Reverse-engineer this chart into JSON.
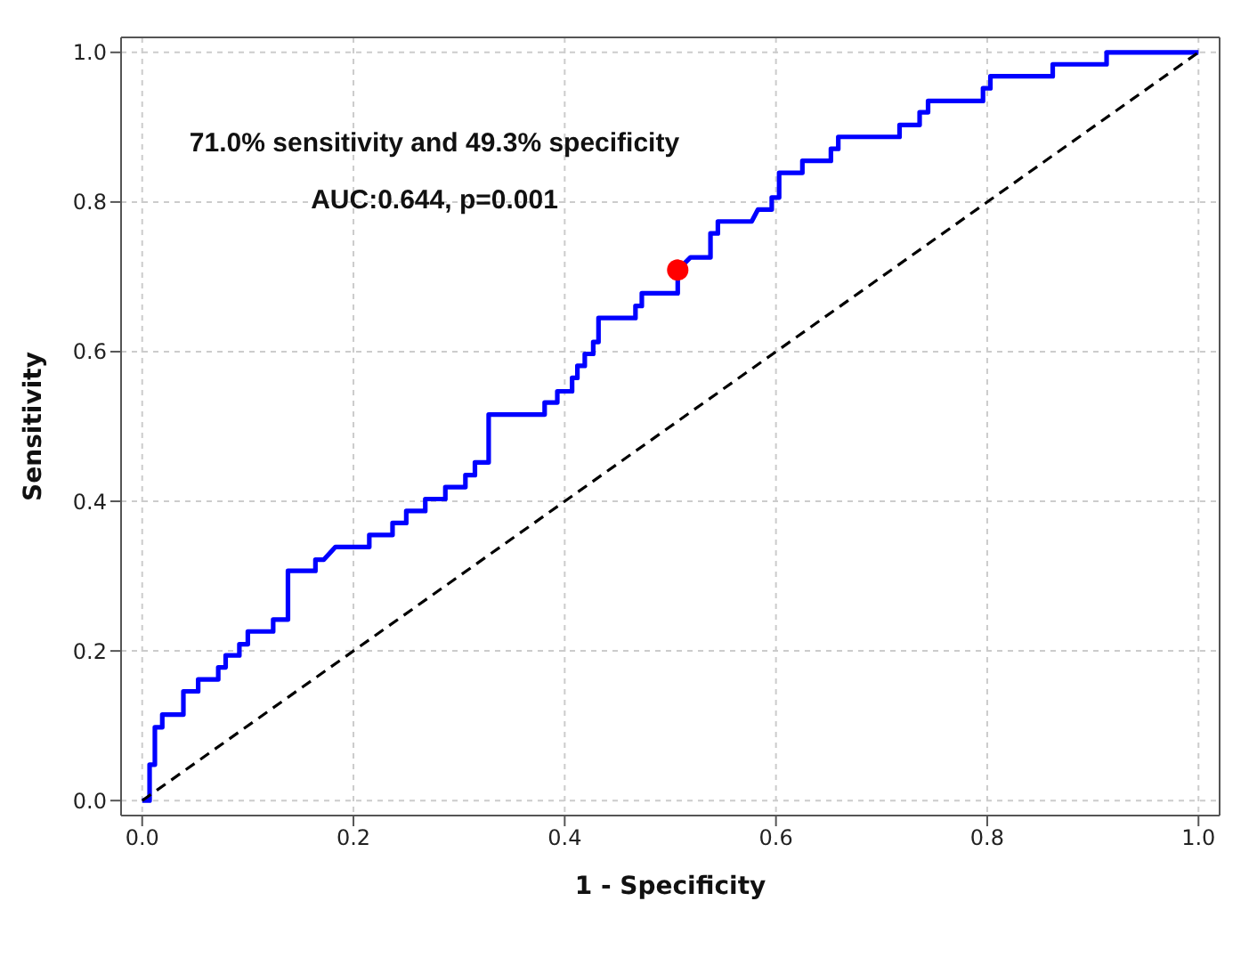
{
  "chart_data": {
    "type": "line",
    "xlabel": "1 - Specificity",
    "ylabel": "Sensitivity",
    "annotations": [
      "71.0% sensitivity and 49.3% specificity",
      "AUC:0.644, p=0.001"
    ],
    "xlim": [
      -0.02,
      1.02
    ],
    "ylim": [
      -0.02,
      1.02
    ],
    "xticks": [
      {
        "value": 0,
        "label": "0.0"
      },
      0.2,
      0.4,
      0.6,
      0.8,
      {
        "value": 1,
        "label": "1.0"
      }
    ],
    "yticks": [
      {
        "value": 0,
        "label": "0.0"
      },
      0.2,
      0.4,
      0.6,
      0.8,
      {
        "value": 1,
        "label": "1.0"
      }
    ],
    "grid": true,
    "series": [
      {
        "color": "#0000ff",
        "line_style": "solid",
        "x": [
          0,
          0.007,
          0.007,
          0.012,
          0.012,
          0.019,
          0.019,
          0.039,
          0.039,
          0.053,
          0.053,
          0.072,
          0.072,
          0.079,
          0.079,
          0.092,
          0.092,
          0.1,
          0.1,
          0.124,
          0.124,
          0.138,
          0.138,
          0.164,
          0.164,
          0.172,
          0.183,
          0.215,
          0.215,
          0.237,
          0.237,
          0.25,
          0.25,
          0.268,
          0.268,
          0.287,
          0.287,
          0.306,
          0.306,
          0.315,
          0.315,
          0.328,
          0.328,
          0.381,
          0.381,
          0.393,
          0.393,
          0.407,
          0.407,
          0.412,
          0.412,
          0.419,
          0.419,
          0.427,
          0.427,
          0.432,
          0.432,
          0.467,
          0.467,
          0.473,
          0.473,
          0.507,
          0.507,
          0.519,
          0.538,
          0.538,
          0.545,
          0.545,
          0.577,
          0.583,
          0.596,
          0.596,
          0.603,
          0.603,
          0.625,
          0.625,
          0.652,
          0.652,
          0.659,
          0.659,
          0.717,
          0.717,
          0.736,
          0.736,
          0.744,
          0.744,
          0.796,
          0.796,
          0.803,
          0.803,
          0.862,
          0.862,
          0.913,
          0.913,
          1
        ],
        "values": [
          0,
          0,
          0.048,
          0.048,
          0.098,
          0.098,
          0.115,
          0.115,
          0.146,
          0.146,
          0.162,
          0.162,
          0.178,
          0.178,
          0.194,
          0.194,
          0.209,
          0.209,
          0.226,
          0.226,
          0.242,
          0.242,
          0.307,
          0.307,
          0.322,
          0.322,
          0.339,
          0.339,
          0.355,
          0.355,
          0.371,
          0.371,
          0.387,
          0.387,
          0.403,
          0.403,
          0.419,
          0.419,
          0.435,
          0.435,
          0.452,
          0.452,
          0.516,
          0.516,
          0.532,
          0.532,
          0.547,
          0.547,
          0.565,
          0.565,
          0.581,
          0.581,
          0.597,
          0.597,
          0.613,
          0.613,
          0.645,
          0.645,
          0.661,
          0.661,
          0.678,
          0.678,
          0.709,
          0.726,
          0.726,
          0.758,
          0.758,
          0.774,
          0.774,
          0.79,
          0.79,
          0.806,
          0.806,
          0.839,
          0.839,
          0.855,
          0.855,
          0.871,
          0.871,
          0.887,
          0.887,
          0.903,
          0.903,
          0.92,
          0.92,
          0.935,
          0.935,
          0.952,
          0.952,
          0.968,
          0.968,
          0.984,
          0.984,
          1,
          1
        ]
      },
      {
        "color": "#000000",
        "line_style": "dashed",
        "x": [
          0,
          1
        ],
        "values": [
          0,
          1
        ]
      },
      {
        "type": "scatter",
        "color": "#ff0000",
        "marker": "circle",
        "x": [
          0.507
        ],
        "values": [
          0.709
        ]
      }
    ]
  }
}
